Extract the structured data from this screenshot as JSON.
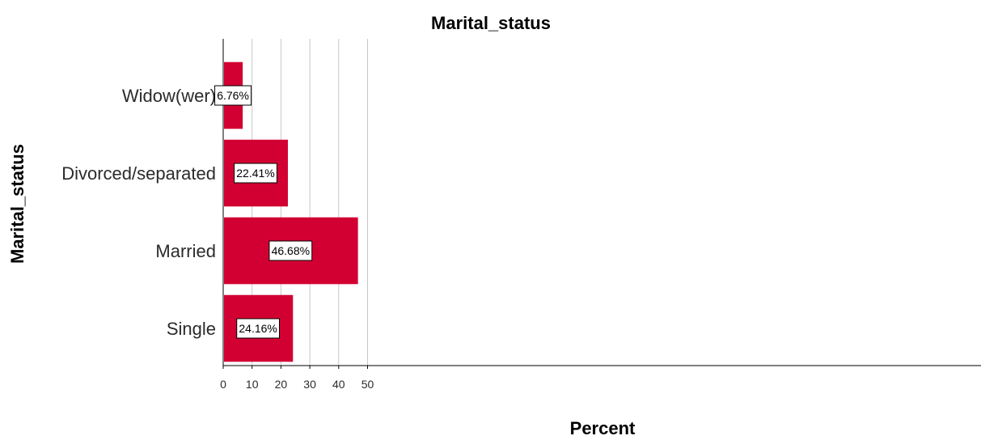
{
  "chart_data": {
    "type": "bar",
    "orientation": "horizontal",
    "title": "Marital_status",
    "xlabel": "Percent",
    "ylabel": "Marital_status",
    "categories": [
      "Widow(wer)",
      "Divorced/separated",
      "Married",
      "Single"
    ],
    "values": [
      6.76,
      22.41,
      46.68,
      24.16
    ],
    "data_labels": [
      "6.76%",
      "22.41%",
      "46.68%",
      "24.16%"
    ],
    "xlim": [
      0,
      52
    ],
    "xticks": [
      0,
      10,
      20,
      30,
      40,
      50
    ],
    "xtick_labels": [
      "0",
      "10",
      "20",
      "30",
      "40",
      "50"
    ],
    "grid": "vertical",
    "legend": "none",
    "colors": {
      "bar": "#d20032",
      "grid": "#c8c8c8",
      "axis": "#000000",
      "label_box_bg": "#ffffff",
      "label_box_border": "#000000"
    }
  }
}
